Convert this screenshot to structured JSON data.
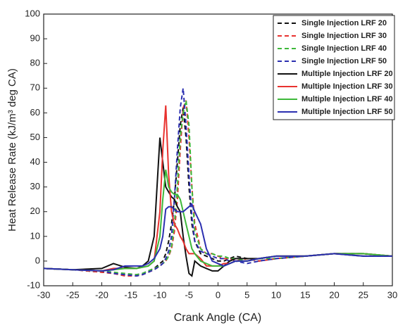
{
  "chart_data": {
    "type": "line",
    "x_label": "Crank Angle (CA)",
    "y_label": "Heat Release Rate (kJ/m³ deg CA)",
    "x": [
      -30,
      -25,
      -20,
      -18,
      -16,
      -14,
      -13,
      -12,
      -11,
      -10,
      -9.5,
      -9,
      -8.5,
      -8,
      -7.5,
      -7,
      -6.5,
      -6,
      -5.5,
      -5,
      -4.5,
      -4,
      -3,
      -2,
      -1,
      0,
      1,
      2,
      3,
      5,
      7,
      10,
      15,
      20,
      25,
      30
    ],
    "series": [
      {
        "name": "Single Injection LRF 20",
        "color": "#111111",
        "dash": true,
        "values": [
          -3,
          -3.5,
          -4.5,
          -5,
          -5.5,
          -5.5,
          -5,
          -4,
          -3,
          -1,
          0,
          3,
          8,
          15,
          25,
          40,
          55,
          62,
          50,
          30,
          15,
          8,
          3,
          2,
          1,
          0,
          0,
          1,
          2,
          1,
          0,
          1,
          2,
          3,
          2,
          2
        ]
      },
      {
        "name": "Single Injection LRF 30",
        "color": "#e8322f",
        "dash": true,
        "values": [
          -3,
          -3.5,
          -4.5,
          -5,
          -6,
          -6,
          -5.5,
          -4.5,
          -3.5,
          -2,
          -1,
          0,
          2,
          5,
          12,
          25,
          45,
          62,
          65,
          50,
          30,
          15,
          5,
          3,
          3,
          2,
          1,
          1,
          0,
          1,
          0,
          1,
          2,
          3,
          3,
          2
        ]
      },
      {
        "name": "Single Injection LRF 40",
        "color": "#3db83a",
        "dash": true,
        "values": [
          -3,
          -3.5,
          -4,
          -4.5,
          -5,
          -5.5,
          -5,
          -4,
          -3,
          -2,
          -1,
          0,
          2,
          6,
          15,
          30,
          50,
          60,
          65,
          55,
          30,
          12,
          5,
          3,
          3,
          2,
          2,
          1,
          1,
          0,
          1,
          1,
          2,
          3,
          3,
          2
        ]
      },
      {
        "name": "Single Injection LRF 50",
        "color": "#2b2fb0",
        "dash": true,
        "values": [
          -3,
          -3.5,
          -4,
          -5,
          -5.5,
          -6,
          -5.5,
          -4.5,
          -3.5,
          -2,
          -1,
          1,
          4,
          10,
          25,
          45,
          62,
          70,
          55,
          35,
          18,
          8,
          4,
          3,
          2,
          1,
          1,
          0,
          0,
          -1,
          0,
          1,
          2,
          3,
          2,
          2
        ]
      },
      {
        "name": "Multiple Injection LRF 20",
        "color": "#111111",
        "dash": false,
        "values": [
          -3,
          -3.5,
          -3,
          -1,
          -2.5,
          -3,
          -2,
          0,
          10,
          50,
          40,
          30,
          28,
          26,
          25,
          22,
          20,
          10,
          2,
          -5,
          -6,
          0,
          -2,
          -3,
          -4,
          -4,
          -2,
          0,
          1,
          1,
          1,
          2,
          2,
          3,
          3,
          2
        ]
      },
      {
        "name": "Multiple Injection LRF 30",
        "color": "#e8322f",
        "dash": false,
        "values": [
          -3,
          -3.5,
          -4,
          -3,
          -3,
          -3,
          -2.5,
          -2,
          0,
          20,
          45,
          63,
          35,
          20,
          15,
          13,
          10,
          8,
          5,
          3,
          3,
          3,
          1,
          -2,
          -2,
          -2,
          -1,
          -1,
          0,
          0,
          1,
          2,
          2,
          3,
          3,
          2
        ]
      },
      {
        "name": "Multiple Injection LRF 40",
        "color": "#3db83a",
        "dash": false,
        "values": [
          -3,
          -3.5,
          -4,
          -3.5,
          -3,
          -3,
          -2.5,
          -2,
          0,
          10,
          25,
          37,
          30,
          28,
          27,
          27,
          25,
          20,
          15,
          10,
          5,
          3,
          0,
          -1,
          -2,
          -2,
          -2,
          -1,
          0,
          0,
          1,
          2,
          2,
          3,
          3,
          2
        ]
      },
      {
        "name": "Multiple Injection LRF 50",
        "color": "#2b2fb0",
        "dash": false,
        "values": [
          -3,
          -3.5,
          -4,
          -3.5,
          -2,
          -2,
          -2,
          -1,
          1,
          5,
          10,
          21,
          22,
          22,
          21,
          20,
          20,
          20,
          21,
          22,
          23,
          20,
          15,
          5,
          0,
          -1,
          -2,
          -1,
          0,
          0,
          1,
          2,
          2,
          3,
          2,
          2
        ]
      }
    ],
    "xlim": [
      -30,
      30
    ],
    "xticks": [
      -30,
      -25,
      -20,
      -15,
      -10,
      -5,
      0,
      5,
      10,
      15,
      20,
      25,
      30
    ],
    "ylim": [
      -10,
      100
    ],
    "yticks": [
      -10,
      0,
      10,
      20,
      30,
      40,
      50,
      60,
      70,
      80,
      90,
      100
    ],
    "legend": "top-right"
  }
}
